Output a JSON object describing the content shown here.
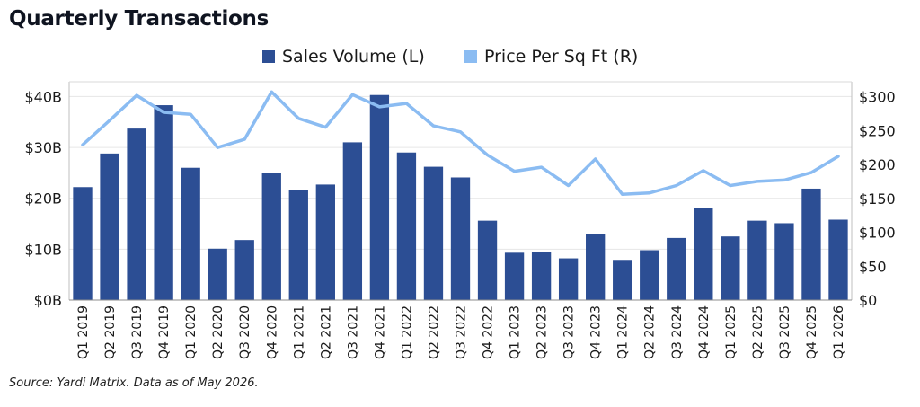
{
  "title": "Quarterly Transactions",
  "source": "Source: Yardi Matrix. Data as of May 2026.",
  "colors": {
    "bar": "#2c4e94",
    "line": "#8bbcf2",
    "axis": "#666666",
    "grid": "#e6e6e6"
  },
  "legend": [
    {
      "label": "Sales Volume (L)",
      "color": "#2c4e94"
    },
    {
      "label": "Price Per Sq Ft (R)",
      "color": "#8bbcf2"
    }
  ],
  "chart_data": {
    "type": "bar",
    "categories": [
      "Q1 2019",
      "Q2 2019",
      "Q3 2019",
      "Q4 2019",
      "Q1 2020",
      "Q2 2020",
      "Q3 2020",
      "Q4 2020",
      "Q1 2021",
      "Q2 2021",
      "Q3 2021",
      "Q4 2021",
      "Q1 2022",
      "Q2 2022",
      "Q3 2022",
      "Q4 2022",
      "Q1 2023",
      "Q2 2023",
      "Q3 2023",
      "Q4 2023",
      "Q1 2024",
      "Q2 2024",
      "Q3 2024",
      "Q4 2024",
      "Q1 2025",
      "Q2 2025",
      "Q3 2025",
      "Q4 2025",
      "Q1 2026"
    ],
    "series": [
      {
        "name": "Sales Volume (L)",
        "type": "bar",
        "axis": "left",
        "values": [
          22.2,
          28.8,
          33.7,
          38.3,
          26.0,
          10.1,
          11.8,
          25.0,
          21.7,
          22.7,
          31.0,
          40.3,
          29.0,
          26.2,
          24.1,
          15.6,
          9.3,
          9.4,
          8.2,
          13.0,
          7.9,
          9.8,
          12.2,
          18.1,
          12.5,
          15.6,
          15.1,
          21.9,
          15.8
        ]
      },
      {
        "name": "Price Per Sq Ft (R)",
        "type": "line",
        "axis": "right",
        "values": [
          229,
          265,
          302,
          277,
          274,
          225,
          237,
          307,
          268,
          255,
          303,
          285,
          290,
          257,
          248,
          214,
          190,
          196,
          169,
          208,
          156,
          158,
          169,
          191,
          169,
          175,
          177,
          188,
          212
        ]
      }
    ],
    "y_left": {
      "ticks": [
        "$0B",
        "$10B",
        "$20B",
        "$30B",
        "$40B"
      ],
      "tick_values": [
        0,
        10,
        20,
        30,
        40
      ],
      "ylim": [
        0,
        42.9
      ]
    },
    "y_right": {
      "ticks": [
        "$0",
        "$50",
        "$100",
        "$150",
        "$200",
        "$250",
        "$300"
      ],
      "tick_values": [
        0,
        50,
        100,
        150,
        200,
        250,
        300
      ],
      "ylim": [
        0,
        322
      ]
    },
    "grid": "horizontal",
    "legend_position": "top-center"
  }
}
